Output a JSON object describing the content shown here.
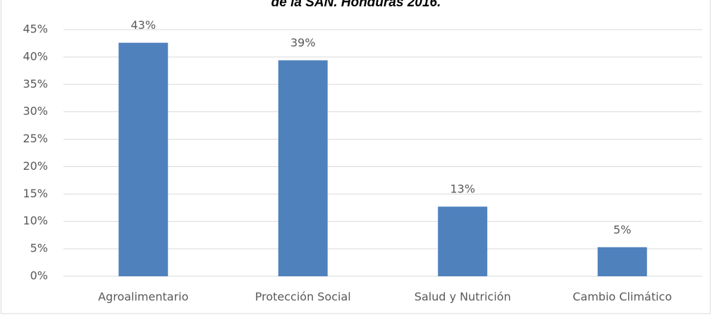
{
  "chart_data": {
    "type": "bar",
    "title": "de la SAN. Honduras 2016.",
    "categories": [
      "Agroalimentario",
      "Protección Social",
      "Salud y Nutrición",
      "Cambio Climático"
    ],
    "values": [
      42.6,
      39.4,
      12.7,
      5.3
    ],
    "value_labels": [
      "43%",
      "39%",
      "13%",
      "5%"
    ],
    "color": "#4f81bd",
    "ylim": [
      0,
      45
    ],
    "yticks": [
      {
        "value": 0,
        "label": "0%"
      },
      {
        "value": 5,
        "label": "5%"
      },
      {
        "value": 10,
        "label": "10%"
      },
      {
        "value": 15,
        "label": "15%"
      },
      {
        "value": 20,
        "label": "20%"
      },
      {
        "value": 25,
        "label": "25%"
      },
      {
        "value": 30,
        "label": "30%"
      },
      {
        "value": 35,
        "label": "35%"
      },
      {
        "value": 40,
        "label": "40%"
      },
      {
        "value": 45,
        "label": "45%"
      }
    ],
    "grid": true
  }
}
